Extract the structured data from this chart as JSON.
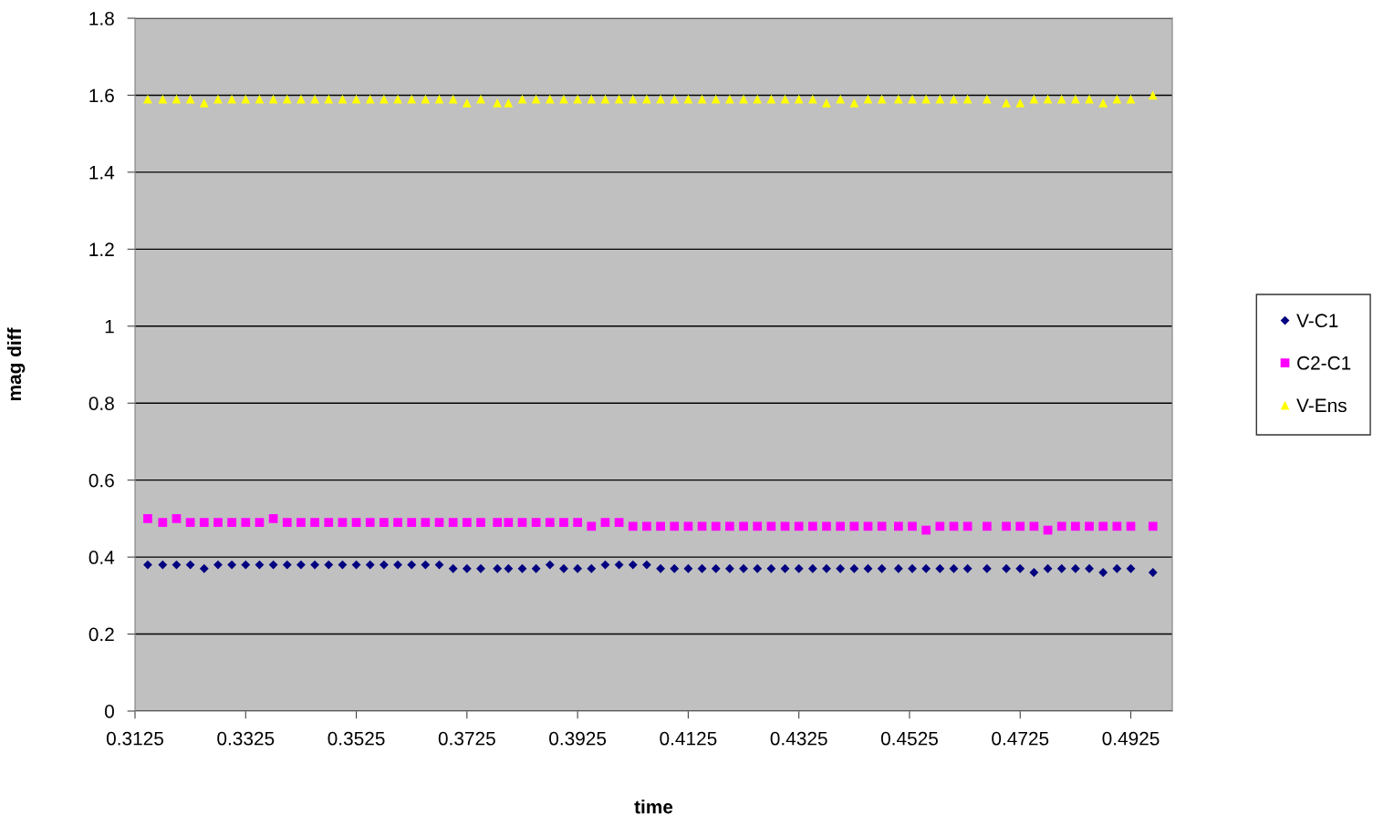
{
  "chart_data": {
    "type": "scatter",
    "xlabel": "time",
    "ylabel": "mag diff",
    "x": [
      0.3148,
      0.3175,
      0.32,
      0.3225,
      0.325,
      0.3275,
      0.33,
      0.3325,
      0.335,
      0.3375,
      0.34,
      0.3425,
      0.345,
      0.3475,
      0.35,
      0.3525,
      0.355,
      0.3575,
      0.36,
      0.3625,
      0.365,
      0.3675,
      0.37,
      0.3725,
      0.375,
      0.378,
      0.38,
      0.3825,
      0.385,
      0.3875,
      0.39,
      0.3925,
      0.395,
      0.3975,
      0.4,
      0.4025,
      0.405,
      0.4075,
      0.41,
      0.4125,
      0.415,
      0.4175,
      0.42,
      0.4225,
      0.425,
      0.4275,
      0.43,
      0.4325,
      0.435,
      0.4375,
      0.44,
      0.4425,
      0.445,
      0.4475,
      0.4505,
      0.453,
      0.4555,
      0.458,
      0.4605,
      0.463,
      0.4665,
      0.47,
      0.4725,
      0.475,
      0.4775,
      0.48,
      0.4825,
      0.485,
      0.4875,
      0.49,
      0.4925,
      0.4965
    ],
    "series": [
      {
        "name": "V-C1",
        "color": "#000080",
        "marker": "diamond",
        "values": [
          0.38,
          0.38,
          0.38,
          0.38,
          0.37,
          0.38,
          0.38,
          0.38,
          0.38,
          0.38,
          0.38,
          0.38,
          0.38,
          0.38,
          0.38,
          0.38,
          0.38,
          0.38,
          0.38,
          0.38,
          0.38,
          0.38,
          0.37,
          0.37,
          0.37,
          0.37,
          0.37,
          0.37,
          0.37,
          0.38,
          0.37,
          0.37,
          0.37,
          0.38,
          0.38,
          0.38,
          0.38,
          0.37,
          0.37,
          0.37,
          0.37,
          0.37,
          0.37,
          0.37,
          0.37,
          0.37,
          0.37,
          0.37,
          0.37,
          0.37,
          0.37,
          0.37,
          0.37,
          0.37,
          0.37,
          0.37,
          0.37,
          0.37,
          0.37,
          0.37,
          0.37,
          0.37,
          0.37,
          0.36,
          0.37,
          0.37,
          0.37,
          0.37,
          0.36,
          0.37,
          0.37,
          0.36
        ]
      },
      {
        "name": "C2-C1",
        "color": "#ff00ff",
        "marker": "square",
        "values": [
          0.5,
          0.49,
          0.5,
          0.49,
          0.49,
          0.49,
          0.49,
          0.49,
          0.49,
          0.5,
          0.49,
          0.49,
          0.49,
          0.49,
          0.49,
          0.49,
          0.49,
          0.49,
          0.49,
          0.49,
          0.49,
          0.49,
          0.49,
          0.49,
          0.49,
          0.49,
          0.49,
          0.49,
          0.49,
          0.49,
          0.49,
          0.49,
          0.48,
          0.49,
          0.49,
          0.48,
          0.48,
          0.48,
          0.48,
          0.48,
          0.48,
          0.48,
          0.48,
          0.48,
          0.48,
          0.48,
          0.48,
          0.48,
          0.48,
          0.48,
          0.48,
          0.48,
          0.48,
          0.48,
          0.48,
          0.48,
          0.47,
          0.48,
          0.48,
          0.48,
          0.48,
          0.48,
          0.48,
          0.48,
          0.47,
          0.48,
          0.48,
          0.48,
          0.48,
          0.48,
          0.48,
          0.48
        ]
      },
      {
        "name": "V-Ens",
        "color": "#ffff00",
        "marker": "triangle",
        "values": [
          1.59,
          1.59,
          1.59,
          1.59,
          1.58,
          1.59,
          1.59,
          1.59,
          1.59,
          1.59,
          1.59,
          1.59,
          1.59,
          1.59,
          1.59,
          1.59,
          1.59,
          1.59,
          1.59,
          1.59,
          1.59,
          1.59,
          1.59,
          1.58,
          1.59,
          1.58,
          1.58,
          1.59,
          1.59,
          1.59,
          1.59,
          1.59,
          1.59,
          1.59,
          1.59,
          1.59,
          1.59,
          1.59,
          1.59,
          1.59,
          1.59,
          1.59,
          1.59,
          1.59,
          1.59,
          1.59,
          1.59,
          1.59,
          1.59,
          1.58,
          1.59,
          1.58,
          1.59,
          1.59,
          1.59,
          1.59,
          1.59,
          1.59,
          1.59,
          1.59,
          1.59,
          1.58,
          1.58,
          1.59,
          1.59,
          1.59,
          1.59,
          1.59,
          1.58,
          1.59,
          1.59,
          1.6
        ]
      }
    ],
    "xlim": [
      0.3125,
      0.5
    ],
    "xticks": [
      0.3125,
      0.3325,
      0.3525,
      0.3725,
      0.3925,
      0.4125,
      0.4325,
      0.4525,
      0.4725,
      0.4925
    ],
    "ylim": [
      0,
      1.8
    ],
    "yticks": [
      0,
      0.2,
      0.4,
      0.6,
      0.8,
      1,
      1.2,
      1.4,
      1.6,
      1.8
    ],
    "grid": "y",
    "legend": "right"
  }
}
